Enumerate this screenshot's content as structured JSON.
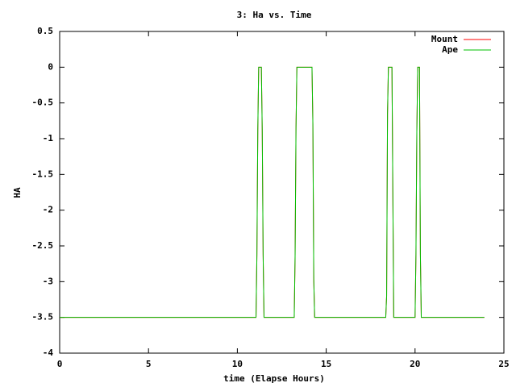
{
  "chart_data": {
    "type": "line",
    "title": "3: Ha vs. Time",
    "x_label": "time (Elapse Hours)",
    "y_label": "HA",
    "x": [
      0,
      11.05,
      11.1,
      11.15,
      11.2,
      11.35,
      11.4,
      11.45,
      11.5,
      13.2,
      13.25,
      13.3,
      13.35,
      14.2,
      14.25,
      14.3,
      14.35,
      18.35,
      18.4,
      18.45,
      18.5,
      18.7,
      18.75,
      18.8,
      20.0,
      20.05,
      20.1,
      20.15,
      20.25,
      20.3,
      20.35,
      23.9
    ],
    "series": [
      {
        "name": "Mount",
        "color": "#ff0000",
        "values": [
          -3.5,
          -3.5,
          -2.62,
          -0.88,
          0,
          0,
          -0.88,
          -2.62,
          -3.5,
          -3.5,
          -2.62,
          -0.85,
          0,
          0,
          -0.8,
          -2.97,
          -3.5,
          -3.5,
          -3.2,
          -0.65,
          0,
          0,
          -1.75,
          -3.5,
          -3.5,
          -2.62,
          -0.9,
          0,
          0,
          -2.62,
          -3.5,
          -3.5
        ]
      },
      {
        "name": "Ape",
        "color": "#00c000",
        "values": [
          -3.5,
          -3.5,
          -2.62,
          -0.88,
          0,
          0,
          -0.88,
          -2.62,
          -3.5,
          -3.5,
          -2.62,
          -0.85,
          0,
          0,
          -0.8,
          -2.97,
          -3.5,
          -3.5,
          -3.2,
          -0.65,
          0,
          0,
          -1.75,
          -3.5,
          -3.5,
          -2.62,
          -0.9,
          0,
          0,
          -2.62,
          -3.5,
          -3.5
        ]
      }
    ],
    "xlim": [
      0,
      25
    ],
    "xticks": [
      0,
      5,
      10,
      15,
      20,
      25
    ],
    "ylim": [
      -4,
      0.5
    ],
    "yticks": [
      0.5,
      0,
      -0.5,
      -1,
      -1.5,
      -2,
      -2.5,
      -3,
      -3.5,
      -4
    ],
    "grid": false,
    "legend": "top-right"
  }
}
